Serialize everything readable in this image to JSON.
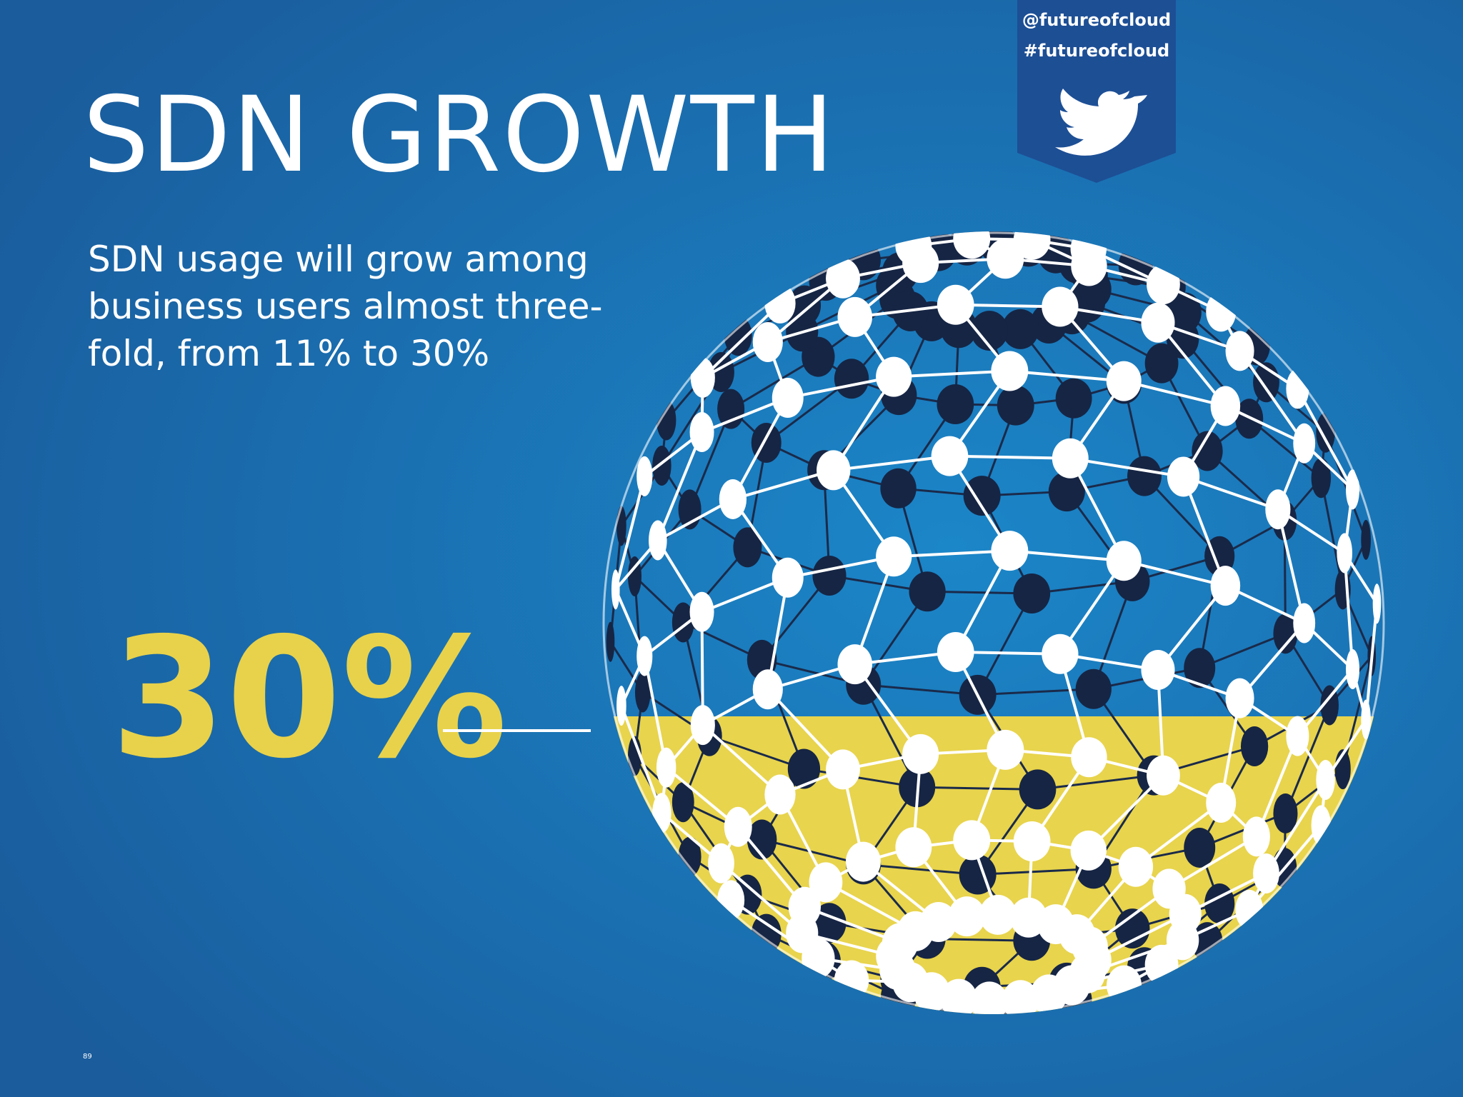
{
  "header": {
    "handle": "@futureofcloud",
    "hashtag": "#futureofcloud"
  },
  "title": "SDN GROWTH",
  "body": {
    "lines": [
      "SDN usage will grow among",
      "business users almost three-",
      "fold, from 11% to 30%"
    ]
  },
  "stat": "30%",
  "page_number": "89"
}
